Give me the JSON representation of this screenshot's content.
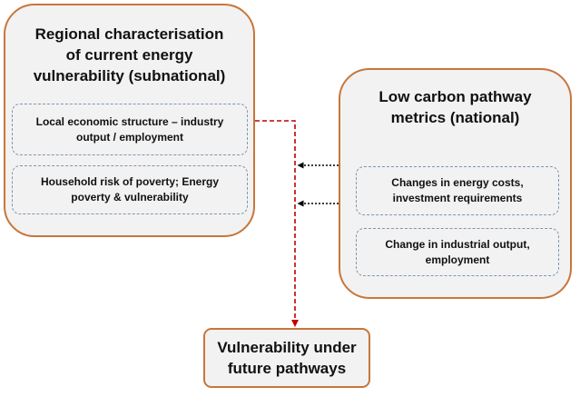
{
  "left_panel": {
    "title_line1": "Regional characterisation",
    "title_line2": "of current energy",
    "title_line3": "vulnerability (subnational)",
    "box1_line1": "Local economic structure – industry",
    "box1_line2": "output / employment",
    "box2_line1": "Household risk of poverty; Energy",
    "box2_line2": "poverty & vulnerability"
  },
  "right_panel": {
    "title_line1": "Low carbon pathway",
    "title_line2": "metrics (national)",
    "box1_line1": "Changes in energy costs,",
    "box1_line2": "investment requirements",
    "box2_line1": "Change in industrial output,",
    "box2_line2": "employment"
  },
  "result_box": {
    "line1": "Vulnerability under",
    "line2": "future pathways"
  },
  "colors": {
    "panel_border": "#c8763a",
    "panel_fill": "#f2f2f2",
    "sub_border": "#7f96ad",
    "red_connector": "#c00000",
    "black_connector": "#000000"
  }
}
